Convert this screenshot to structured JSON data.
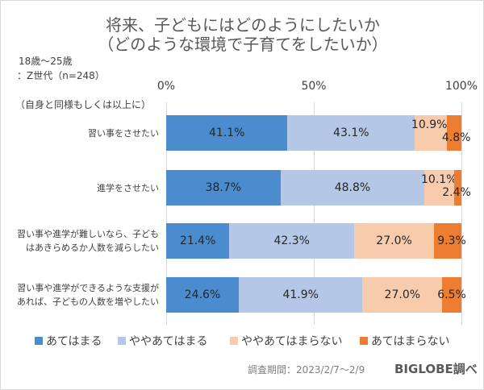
{
  "chart_data": {
    "type": "bar",
    "orientation": "horizontal",
    "stacked": true,
    "title": "将来、子どもにはどのようにしたいか",
    "subtitle": "（どのような環境で子育てをしたいか）",
    "sample_note": [
      "18歳～25歳",
      "：Z世代（n=248）"
    ],
    "category_header": "（自身と同様もしくは以上に）",
    "categories": [
      [
        "習い事をさせたい"
      ],
      [
        "進学をさせたい"
      ],
      [
        "習い事や進学が難しいなら、子ども",
        "はあきらめるか人数を減らしたい"
      ],
      [
        "習い事や進学ができるような支援が",
        "あれば、子どもの人数を増やしたい"
      ]
    ],
    "xlim": [
      0,
      100
    ],
    "x_ticks": [
      "0%",
      "50%",
      "100%"
    ],
    "grid": true,
    "legend_position": "bottom",
    "series": [
      {
        "name": "あてはまる",
        "color": "#4a8ccd",
        "values": [
          41.1,
          38.7,
          21.4,
          24.6
        ]
      },
      {
        "name": "ややあてはまる",
        "color": "#b4c7e7",
        "values": [
          43.1,
          48.8,
          42.3,
          41.9
        ]
      },
      {
        "name": "ややあてはまらない",
        "color": "#f8cbad",
        "values": [
          10.9,
          10.1,
          27.0,
          27.0
        ]
      },
      {
        "name": "あてはまらない",
        "color": "#ed7d31",
        "values": [
          4.8,
          2.4,
          9.3,
          6.5
        ]
      }
    ],
    "data_labels": [
      [
        "41.1%",
        "43.1%",
        "10.9%",
        "4.8%"
      ],
      [
        "38.7%",
        "48.8%",
        "10.1%",
        "2.4%"
      ],
      [
        "21.4%",
        "42.3%",
        "27.0%",
        "9.3%"
      ],
      [
        "24.6%",
        "41.9%",
        "27.0%",
        "6.5%"
      ]
    ],
    "footnote": "調査期間：2023/2/7～2/9",
    "source": "BIGLOBE調べ"
  }
}
